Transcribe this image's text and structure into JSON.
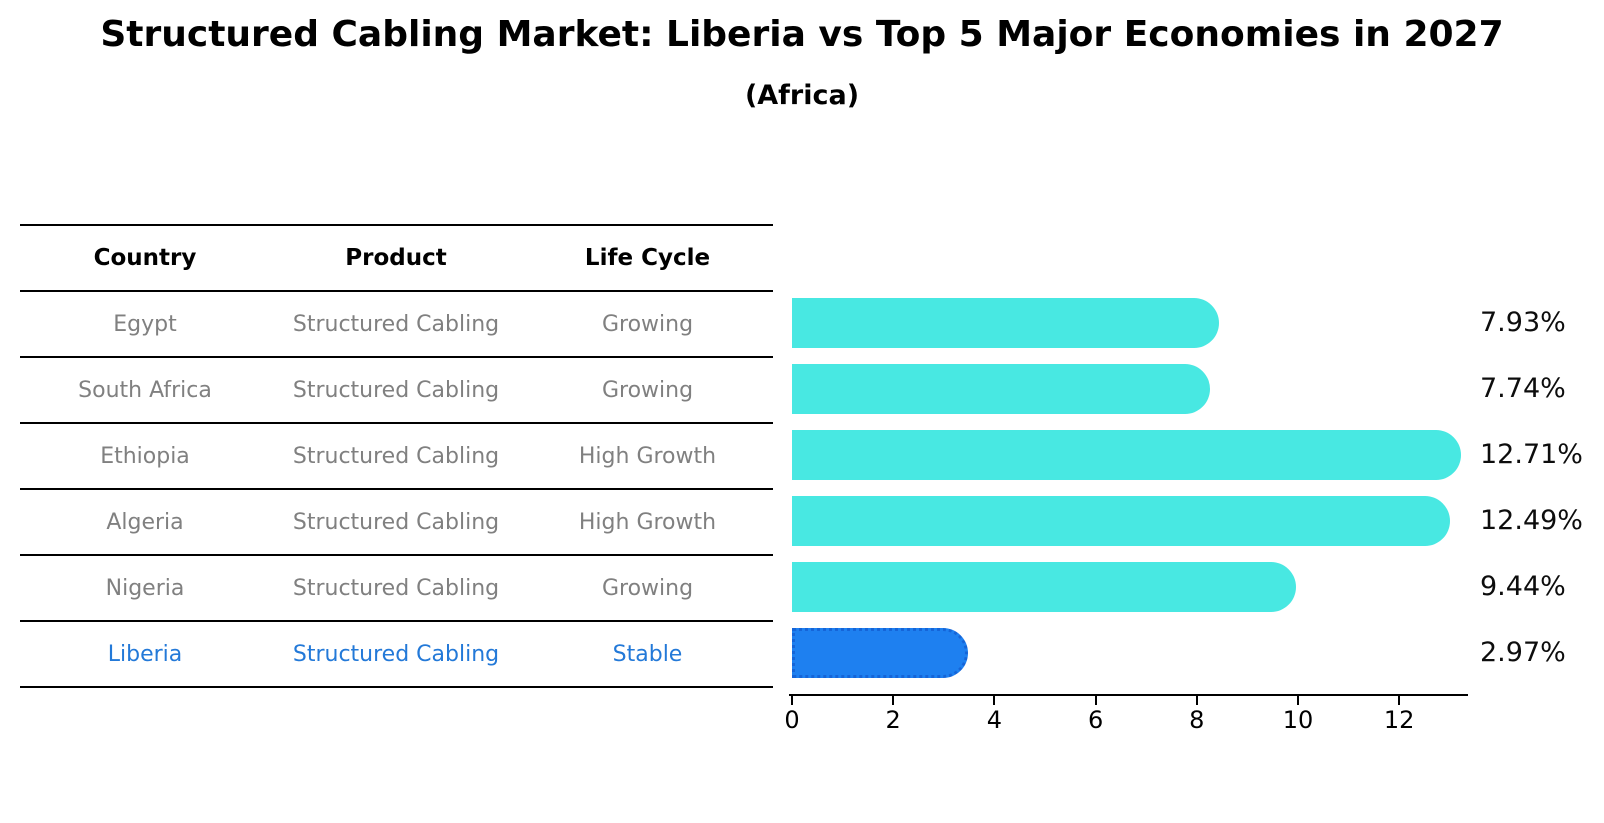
{
  "title": "Structured Cabling Market: Liberia vs Top 5 Major Economies in 2027",
  "subtitle": "(Africa)",
  "table": {
    "headers": [
      "Country",
      "Product",
      "Life Cycle"
    ],
    "rows": [
      {
        "country": "Egypt",
        "product": "Structured Cabling",
        "life_cycle": "Growing",
        "value": 7.93,
        "value_label": "7.93%",
        "highlight": false
      },
      {
        "country": "South Africa",
        "product": "Structured Cabling",
        "life_cycle": "Growing",
        "value": 7.74,
        "value_label": "7.74%",
        "highlight": false
      },
      {
        "country": "Ethiopia",
        "product": "Structured Cabling",
        "life_cycle": "High Growth",
        "value": 12.71,
        "value_label": "12.71%",
        "highlight": false
      },
      {
        "country": "Algeria",
        "product": "Structured Cabling",
        "life_cycle": "High Growth",
        "value": 12.49,
        "value_label": "12.49%",
        "highlight": false
      },
      {
        "country": "Nigeria",
        "product": "Structured Cabling",
        "life_cycle": "Growing",
        "value": 9.44,
        "value_label": "9.44%",
        "highlight": false
      },
      {
        "country": "Liberia",
        "product": "Structured Cabling",
        "life_cycle": "Stable",
        "value": 2.97,
        "value_label": "2.97%",
        "highlight": true
      }
    ]
  },
  "chart_data": {
    "type": "bar",
    "orientation": "horizontal",
    "title": "Structured Cabling Market: Liberia vs Top 5 Major Economies in 2027",
    "subtitle": "(Africa)",
    "categories": [
      "Egypt",
      "South Africa",
      "Ethiopia",
      "Algeria",
      "Nigeria",
      "Liberia"
    ],
    "values": [
      7.93,
      7.74,
      12.71,
      12.49,
      9.44,
      2.97
    ],
    "value_labels": [
      "7.93%",
      "7.74%",
      "12.71%",
      "12.49%",
      "9.44%",
      "2.97%"
    ],
    "xlabel": "",
    "ylabel": "",
    "xticks": [
      0,
      2,
      4,
      6,
      8,
      10,
      12
    ],
    "xlim": [
      0,
      13.35
    ],
    "grid": false,
    "legend": "none",
    "highlight_index": 5
  },
  "colors": {
    "bar": "#48e8e2",
    "highlight_bar": "#1e80f0",
    "highlight_border": "#1565d8",
    "row_text": "#808080",
    "highlight_text": "#2379d8",
    "axis": "#000000"
  }
}
